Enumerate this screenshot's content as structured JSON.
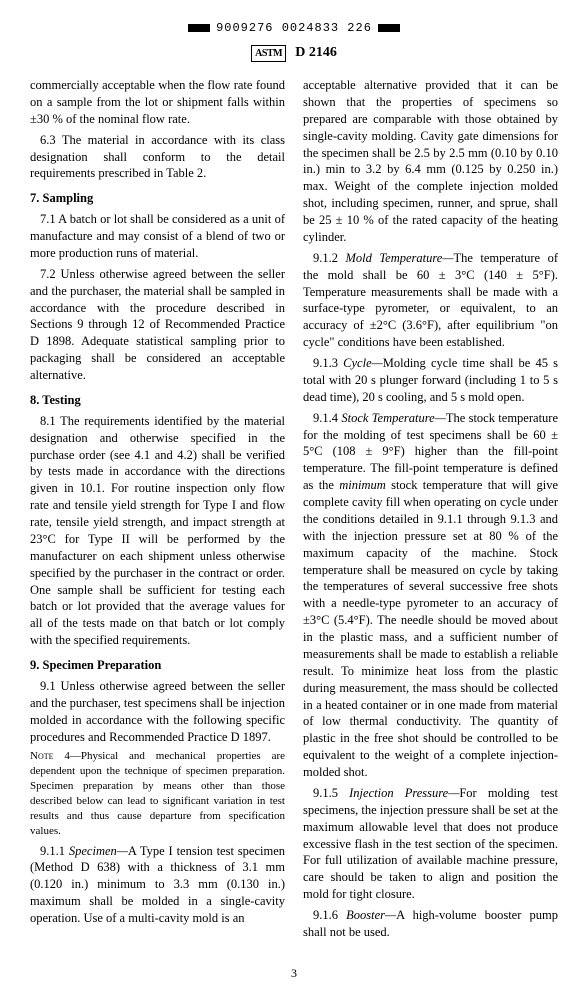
{
  "top_code": "9009276 0024833 226",
  "logo_text": "ASTM",
  "doc_number": "D 2146",
  "page_number": "3",
  "left_column": {
    "p0": "commercially acceptable when the flow rate found on a sample from the lot or shipment falls within ±30 % of the nominal flow rate.",
    "p1_num": "6.3",
    "p1_text": " The material in accordance with its class designation shall conform to the detail requirements prescribed in Table 2.",
    "s7_head": "7. Sampling",
    "p71_num": "7.1",
    "p71_text": " A batch or lot shall be considered as a unit of manufacture and may consist of a blend of two or more production runs of material.",
    "p72_num": "7.2",
    "p72_text": " Unless otherwise agreed between the seller and the purchaser, the material shall be sampled in accordance with the procedure described in Sections 9 through 12 of Recommended Practice D 1898. Adequate statistical sampling prior to packaging shall be considered an acceptable alternative.",
    "s8_head": "8. Testing",
    "p81_num": "8.1",
    "p81_text": " The requirements identified by the material designation and otherwise specified in the purchase order (see 4.1 and 4.2) shall be verified by tests made in accordance with the directions given in 10.1. For routine inspection only flow rate and tensile yield strength for Type I and flow rate, tensile yield strength, and impact strength at 23°C for Type II will be performed by the manufacturer on each shipment unless otherwise specified by the purchaser in the contract or order. One sample shall be sufficient for testing each batch or lot provided that the average values for all of the tests made on that batch or lot comply with the specified requirements.",
    "s9_head": "9. Specimen Preparation",
    "p91_num": "9.1",
    "p91_text": " Unless otherwise agreed between the seller and the purchaser, test specimens shall be injection molded in accordance with the following specific procedures and Recommended Practice D 1897.",
    "note4_title": "Note 4",
    "note4_text": "—Physical and mechanical properties are dependent upon the technique of specimen preparation. Specimen preparation by means other than those described below can lead to significant variation in test results and thus cause departure from specification values.",
    "p911_num": "9.1.1 ",
    "p911_label": "Specimen—",
    "p911_text": "A Type I tension test specimen (Method D 638) with a thickness of 3.1 mm (0.120 in.) minimum to 3.3 mm (0.130 in.) maximum shall be molded in a single-cavity operation. Use of a multi-cavity mold is an"
  },
  "right_column": {
    "p0": "acceptable alternative provided that it can be shown that the properties of specimens so prepared are comparable with those obtained by single-cavity molding. Cavity gate dimensions for the specimen shall be 2.5 by 2.5 mm (0.10 by 0.10 in.) min to 3.2 by 6.4 mm (0.125 by 0.250 in.) max. Weight of the complete injection molded shot, including specimen, runner, and sprue, shall be 25 ± 10 % of the rated capacity of the heating cylinder.",
    "p912_num": "9.1.2 ",
    "p912_label": "Mold Temperature—",
    "p912_text": "The temperature of the mold shall be 60 ± 3°C (140 ± 5°F). Temperature measurements shall be made with a surface-type pyrometer, or equivalent, to an accuracy of ±2°C (3.6°F), after equilibrium \"on cycle\" conditions have been established.",
    "p913_num": "9.1.3 ",
    "p913_label": "Cycle—",
    "p913_text": "Molding cycle time shall be 45 s total with 20 s plunger forward (including 1 to 5 s dead time), 20 s cooling, and 5 s mold open.",
    "p914_num": "9.1.4 ",
    "p914_label": "Stock Temperature—",
    "p914_a": "The stock temperature for the molding of test specimens shall be 60 ± 5°C (108 ± 9°F) higher than the fill-point temperature. The fill-point temperature is defined as the ",
    "p914_min": "minimum",
    "p914_b": " stock temperature that will give complete cavity fill when operating on cycle under the conditions detailed in 9.1.1 through 9.1.3 and with the injection pressure set at 80 % of the maximum capacity of the machine. Stock temperature shall be measured on cycle by taking the temperatures of several successive free shots with a needle-type pyrometer to an accuracy of ±3°C (5.4°F). The needle should be moved about in the plastic mass, and a sufficient number of measurements shall be made to establish a reliable result. To minimize heat loss from the plastic during measurement, the mass should be collected in a heated container or in one made from material of low thermal conductivity. The quantity of plastic in the free shot should be controlled to be equivalent to the weight of a complete injection-molded shot.",
    "p915_num": "9.1.5 ",
    "p915_label": "Injection Pressure—",
    "p915_text": "For molding test specimens, the injection pressure shall be set at the maximum allowable level that does not produce excessive flash in the test section of the specimen. For full utilization of available machine pressure, care should be taken to align and position the mold for tight closure.",
    "p916_num": "9.1.6 ",
    "p916_label": "Booster—",
    "p916_text": "A high-volume booster pump shall not be used."
  }
}
